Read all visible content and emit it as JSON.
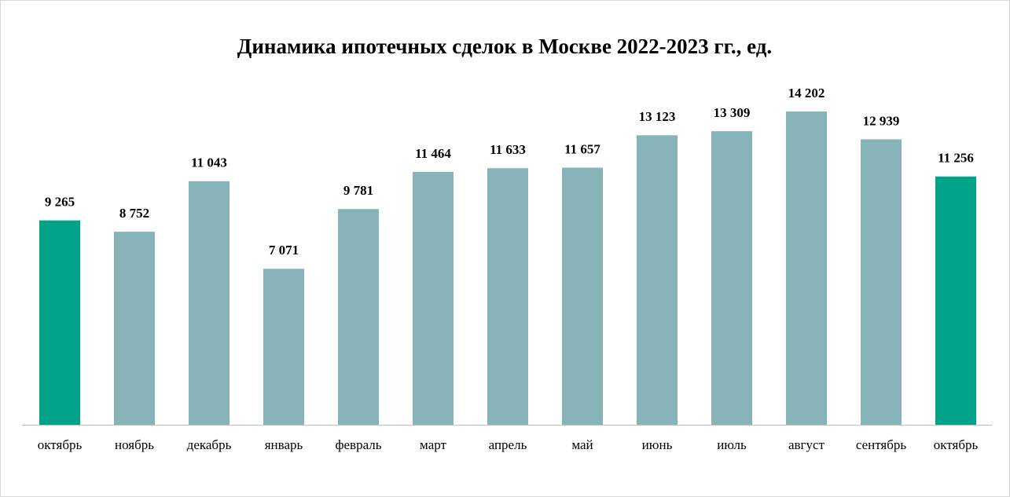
{
  "chart_data": {
    "type": "bar",
    "title": "Динамика ипотечных сделок в Москве 2022-2023 гг., ед.",
    "categories": [
      "октябрь",
      "ноябрь",
      "декабрь",
      "январь",
      "февраль",
      "март",
      "апрель",
      "май",
      "июнь",
      "июль",
      "август",
      "сентябрь",
      "октябрь"
    ],
    "values": [
      9265,
      8752,
      11043,
      7071,
      9781,
      11464,
      11633,
      11657,
      13123,
      13309,
      14202,
      12939,
      11256
    ],
    "value_labels": [
      "9 265",
      "8 752",
      "11 043",
      "7 071",
      "9 781",
      "11 464",
      "11 633",
      "11 657",
      "13 123",
      "13 309",
      "14 202",
      "12 939",
      "11 256"
    ],
    "colors": [
      "#00a387",
      "#86b4b9",
      "#86b4b9",
      "#86b4b9",
      "#86b4b9",
      "#86b4b9",
      "#86b4b9",
      "#86b4b9",
      "#86b4b9",
      "#86b4b9",
      "#86b4b9",
      "#86b4b9",
      "#00a387"
    ]
  }
}
